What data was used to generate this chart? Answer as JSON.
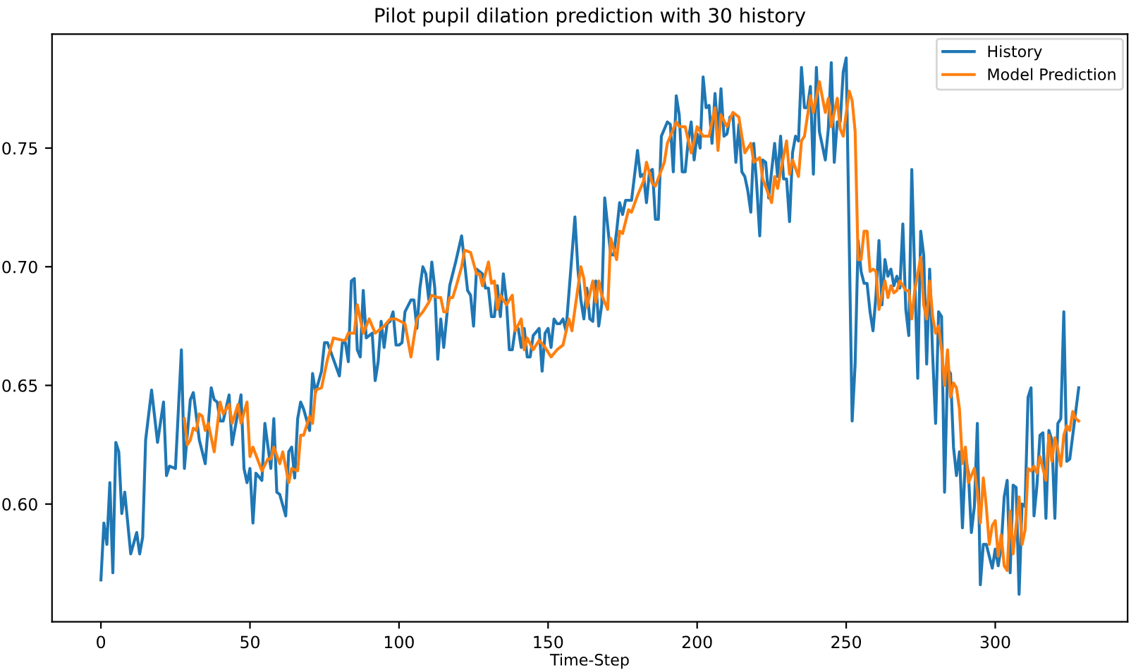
{
  "chart_data": {
    "type": "line",
    "title": "Pilot pupil dilation prediction with 30 history",
    "xlabel": "Time-Step",
    "xlim": [
      -16.4,
      344.4
    ],
    "xticks": [
      0,
      50,
      100,
      150,
      200,
      250,
      300
    ],
    "ylim": [
      0.5504,
      0.798
    ],
    "yticks": [
      {
        "value": 0.6,
        "label": "0.60"
      },
      {
        "value": 0.65,
        "label": "0.65"
      },
      {
        "value": 0.7,
        "label": "0.70"
      },
      {
        "value": 0.75,
        "label": "0.75"
      }
    ],
    "grid": false,
    "legend": "top right",
    "line_style": "solid",
    "series": [
      {
        "name": "History",
        "color": "#1f77b4",
        "x": [
          0,
          1,
          2,
          3,
          4,
          5,
          6,
          7,
          8,
          10,
          12,
          13,
          14,
          15,
          17,
          19,
          21,
          22,
          23,
          25,
          27,
          28,
          30,
          31,
          33,
          35,
          37,
          38,
          39,
          40,
          41,
          43,
          44,
          47,
          48,
          49,
          50,
          51,
          52,
          54,
          55,
          57,
          58,
          59,
          60,
          62,
          63,
          64,
          65,
          66,
          67,
          68,
          70,
          71,
          72,
          74,
          75,
          76,
          78,
          80,
          81,
          82,
          83,
          84,
          85,
          86,
          87,
          88,
          89,
          91,
          92,
          93,
          94,
          95,
          96,
          97,
          98,
          99,
          100,
          101,
          102,
          104,
          105,
          106,
          107,
          108,
          109,
          110,
          111,
          112,
          113,
          114,
          115,
          117,
          119,
          121,
          123,
          124,
          125,
          126,
          128,
          129,
          130,
          131,
          132,
          133,
          134,
          135,
          136,
          137,
          138,
          139,
          140,
          141,
          142,
          143,
          144,
          145,
          147,
          148,
          149,
          150,
          151,
          152,
          153,
          154,
          155,
          156,
          159,
          160,
          161,
          162,
          163,
          164,
          165,
          166,
          167,
          168,
          169,
          171,
          172,
          173,
          174,
          175,
          176,
          178,
          180,
          181,
          182,
          183,
          184,
          185,
          186,
          187,
          188,
          190,
          191,
          192,
          193,
          194,
          195,
          196,
          197,
          198,
          199,
          200,
          201,
          202,
          203,
          204,
          205,
          206,
          207,
          208,
          209,
          210,
          211,
          212,
          213,
          214,
          215,
          216,
          217,
          218,
          219,
          220,
          221,
          222,
          223,
          224,
          226,
          227,
          228,
          229,
          230,
          231,
          232,
          233,
          234,
          235,
          236,
          237,
          238,
          239,
          240,
          241,
          243,
          244,
          245,
          246,
          247,
          248,
          249,
          250,
          252,
          253,
          254,
          255,
          256,
          257,
          258,
          259,
          260,
          261,
          262,
          263,
          264,
          265,
          266,
          267,
          268,
          269,
          270,
          271,
          272,
          273,
          274,
          275,
          276,
          277,
          278,
          279,
          280,
          281,
          282,
          283,
          284,
          285,
          286,
          287,
          288,
          289,
          290,
          291,
          292,
          293,
          294,
          295,
          296,
          297,
          299,
          300,
          301,
          302,
          303,
          304,
          305,
          306,
          307,
          308,
          309,
          310,
          311,
          312,
          313,
          314,
          315,
          316,
          317,
          318,
          319,
          320,
          321,
          322,
          323,
          324,
          325,
          328
        ],
        "values": [
          0.568,
          0.592,
          0.583,
          0.609,
          0.571,
          0.626,
          0.622,
          0.596,
          0.605,
          0.579,
          0.588,
          0.579,
          0.586,
          0.627,
          0.648,
          0.626,
          0.643,
          0.612,
          0.616,
          0.615,
          0.665,
          0.615,
          0.644,
          0.647,
          0.627,
          0.617,
          0.649,
          0.644,
          0.643,
          0.635,
          0.635,
          0.646,
          0.625,
          0.646,
          0.615,
          0.609,
          0.615,
          0.592,
          0.613,
          0.61,
          0.634,
          0.615,
          0.636,
          0.605,
          0.604,
          0.595,
          0.622,
          0.624,
          0.611,
          0.636,
          0.643,
          0.64,
          0.631,
          0.655,
          0.647,
          0.656,
          0.668,
          0.668,
          0.661,
          0.654,
          0.668,
          0.668,
          0.66,
          0.694,
          0.695,
          0.665,
          0.662,
          0.69,
          0.67,
          0.672,
          0.652,
          0.66,
          0.677,
          0.666,
          0.676,
          0.677,
          0.681,
          0.667,
          0.667,
          0.668,
          0.681,
          0.686,
          0.686,
          0.674,
          0.691,
          0.7,
          0.697,
          0.686,
          0.702,
          0.691,
          0.661,
          0.678,
          0.666,
          0.692,
          0.702,
          0.713,
          0.69,
          0.688,
          0.675,
          0.699,
          0.697,
          0.691,
          0.691,
          0.679,
          0.679,
          0.692,
          0.679,
          0.697,
          0.686,
          0.665,
          0.665,
          0.674,
          0.674,
          0.666,
          0.674,
          0.662,
          0.662,
          0.671,
          0.674,
          0.656,
          0.672,
          0.674,
          0.666,
          0.678,
          0.676,
          0.676,
          0.678,
          0.673,
          0.721,
          0.699,
          0.686,
          0.678,
          0.691,
          0.678,
          0.677,
          0.694,
          0.675,
          0.684,
          0.729,
          0.705,
          0.705,
          0.715,
          0.727,
          0.722,
          0.728,
          0.728,
          0.749,
          0.738,
          0.739,
          0.727,
          0.74,
          0.741,
          0.72,
          0.72,
          0.755,
          0.761,
          0.76,
          0.74,
          0.772,
          0.764,
          0.74,
          0.74,
          0.753,
          0.761,
          0.745,
          0.756,
          0.75,
          0.78,
          0.767,
          0.768,
          0.752,
          0.773,
          0.756,
          0.775,
          0.755,
          0.756,
          0.763,
          0.764,
          0.744,
          0.76,
          0.74,
          0.738,
          0.732,
          0.723,
          0.752,
          0.734,
          0.713,
          0.745,
          0.744,
          0.729,
          0.752,
          0.738,
          0.755,
          0.737,
          0.737,
          0.719,
          0.748,
          0.755,
          0.753,
          0.784,
          0.767,
          0.767,
          0.776,
          0.739,
          0.784,
          0.757,
          0.745,
          0.758,
          0.786,
          0.744,
          0.761,
          0.761,
          0.782,
          0.788,
          0.635,
          0.659,
          0.711,
          0.698,
          0.693,
          0.693,
          0.681,
          0.673,
          0.688,
          0.711,
          0.684,
          0.703,
          0.696,
          0.699,
          0.692,
          0.696,
          0.691,
          0.718,
          0.682,
          0.671,
          0.741,
          0.696,
          0.653,
          0.715,
          0.705,
          0.659,
          0.699,
          0.663,
          0.634,
          0.681,
          0.679,
          0.605,
          0.657,
          0.655,
          0.624,
          0.612,
          0.622,
          0.59,
          0.62,
          0.613,
          0.588,
          0.599,
          0.634,
          0.566,
          0.583,
          0.583,
          0.573,
          0.581,
          0.574,
          0.582,
          0.603,
          0.61,
          0.571,
          0.608,
          0.607,
          0.562,
          0.6,
          0.599,
          0.645,
          0.649,
          0.595,
          0.608,
          0.629,
          0.63,
          0.594,
          0.631,
          0.627,
          0.594,
          0.634,
          0.636,
          0.681,
          0.618,
          0.619,
          0.649
        ]
      },
      {
        "name": "Model Prediction",
        "color": "#ff7f0e",
        "x": [
          28,
          29,
          30,
          31,
          32,
          33,
          34,
          35,
          36,
          38,
          40,
          41,
          43,
          44,
          46,
          47,
          49,
          50,
          51,
          54,
          56,
          57,
          58,
          60,
          61,
          63,
          64,
          66,
          67,
          68,
          70,
          71,
          72,
          74,
          76,
          78,
          81,
          82,
          83,
          85,
          86,
          88,
          90,
          92,
          95,
          97,
          99,
          102,
          104,
          106,
          108,
          110,
          111,
          113,
          114,
          115,
          116,
          117,
          118,
          119,
          121,
          122,
          124,
          126,
          127,
          128,
          129,
          130,
          131,
          132,
          133,
          134,
          136,
          137,
          138,
          139,
          141,
          142,
          143,
          145,
          147,
          149,
          151,
          153,
          155,
          157,
          158,
          161,
          162,
          163,
          165,
          166,
          167,
          168,
          170,
          171,
          173,
          174,
          175,
          177,
          178,
          180,
          182,
          183,
          185,
          186,
          189,
          190,
          193,
          194,
          196,
          198,
          199,
          200,
          202,
          204,
          206,
          207,
          208,
          210,
          212,
          214,
          215,
          216,
          218,
          219,
          221,
          222,
          225,
          226,
          227,
          228,
          230,
          231,
          232,
          234,
          235,
          236,
          238,
          239,
          241,
          243,
          244,
          245,
          247,
          248,
          249,
          251,
          252,
          253,
          254,
          255,
          256,
          257,
          258,
          259,
          260,
          261,
          262,
          263,
          264,
          265,
          266,
          267,
          268,
          269,
          270,
          271,
          272,
          273,
          275,
          276,
          277,
          278,
          279,
          280,
          281,
          282,
          283,
          284,
          285,
          286,
          287,
          288,
          289,
          290,
          291,
          293,
          294,
          295,
          296,
          297,
          298,
          299,
          300,
          301,
          302,
          303,
          304,
          305,
          306,
          307,
          308,
          309,
          310,
          311,
          312,
          313,
          314,
          315,
          317,
          318,
          319,
          320,
          321,
          322,
          323,
          324,
          325,
          326,
          327,
          328
        ],
        "values": [
          0.636,
          0.625,
          0.627,
          0.632,
          0.631,
          0.638,
          0.637,
          0.631,
          0.634,
          0.622,
          0.643,
          0.638,
          0.642,
          0.634,
          0.642,
          0.634,
          0.643,
          0.62,
          0.624,
          0.614,
          0.619,
          0.619,
          0.624,
          0.617,
          0.622,
          0.609,
          0.615,
          0.614,
          0.629,
          0.629,
          0.637,
          0.634,
          0.648,
          0.649,
          0.661,
          0.67,
          0.669,
          0.669,
          0.672,
          0.672,
          0.684,
          0.672,
          0.678,
          0.672,
          0.675,
          0.678,
          0.678,
          0.676,
          0.662,
          0.678,
          0.681,
          0.685,
          0.688,
          0.687,
          0.687,
          0.681,
          0.681,
          0.687,
          0.687,
          0.691,
          0.7,
          0.707,
          0.706,
          0.697,
          0.697,
          0.692,
          0.697,
          0.702,
          0.693,
          0.694,
          0.682,
          0.688,
          0.684,
          0.686,
          0.688,
          0.673,
          0.678,
          0.665,
          0.67,
          0.665,
          0.669,
          0.666,
          0.662,
          0.665,
          0.667,
          0.678,
          0.673,
          0.7,
          0.695,
          0.683,
          0.694,
          0.685,
          0.694,
          0.688,
          0.682,
          0.712,
          0.703,
          0.715,
          0.714,
          0.724,
          0.723,
          0.73,
          0.736,
          0.744,
          0.735,
          0.734,
          0.744,
          0.752,
          0.761,
          0.759,
          0.759,
          0.748,
          0.753,
          0.759,
          0.755,
          0.755,
          0.767,
          0.749,
          0.764,
          0.759,
          0.765,
          0.763,
          0.755,
          0.748,
          0.752,
          0.744,
          0.746,
          0.737,
          0.727,
          0.738,
          0.733,
          0.74,
          0.753,
          0.739,
          0.745,
          0.738,
          0.753,
          0.755,
          0.772,
          0.765,
          0.778,
          0.765,
          0.771,
          0.759,
          0.771,
          0.758,
          0.755,
          0.774,
          0.77,
          0.757,
          0.703,
          0.703,
          0.715,
          0.715,
          0.698,
          0.699,
          0.698,
          0.682,
          0.688,
          0.694,
          0.687,
          0.692,
          0.689,
          0.69,
          0.694,
          0.692,
          0.69,
          0.69,
          0.678,
          0.69,
          0.704,
          0.684,
          0.678,
          0.694,
          0.679,
          0.672,
          0.675,
          0.665,
          0.65,
          0.665,
          0.645,
          0.651,
          0.649,
          0.64,
          0.617,
          0.624,
          0.609,
          0.615,
          0.605,
          0.592,
          0.611,
          0.599,
          0.583,
          0.591,
          0.593,
          0.578,
          0.587,
          0.574,
          0.572,
          0.597,
          0.579,
          0.591,
          0.603,
          0.583,
          0.589,
          0.615,
          0.614,
          0.616,
          0.613,
          0.62,
          0.61,
          0.629,
          0.618,
          0.628,
          0.623,
          0.616,
          0.629,
          0.633,
          0.631,
          0.639,
          0.636,
          0.635
        ]
      }
    ]
  }
}
